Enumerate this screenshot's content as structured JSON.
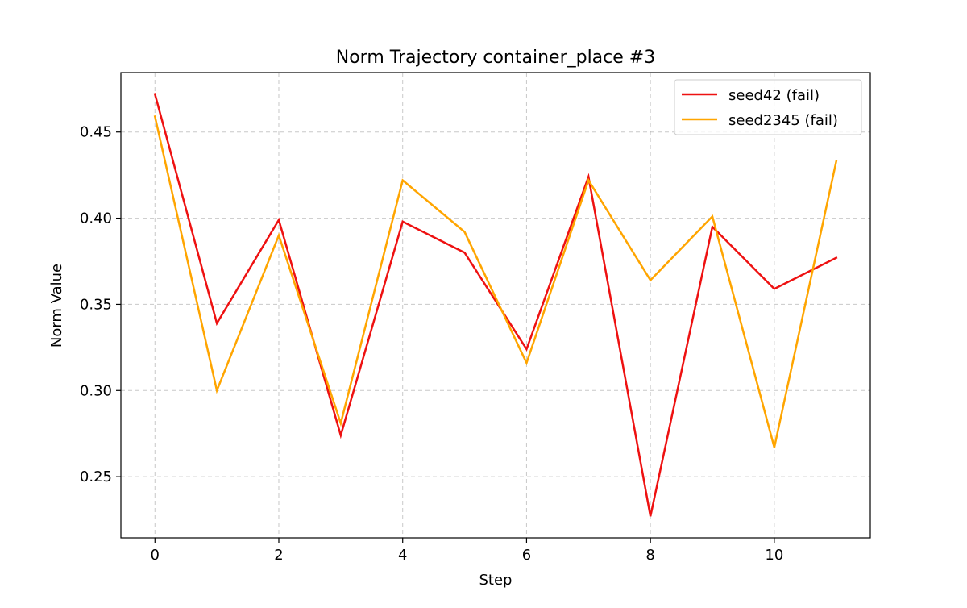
{
  "chart_data": {
    "type": "line",
    "title": "Norm Trajectory container_place #3",
    "xlabel": "Step",
    "ylabel": "Norm Value",
    "xlim": [
      -0.55,
      11.55
    ],
    "ylim": [
      0.2145,
      0.4845
    ],
    "xticks": [
      0,
      2,
      4,
      6,
      8,
      10
    ],
    "xtick_labels": [
      "0",
      "2",
      "4",
      "6",
      "8",
      "10"
    ],
    "yticks": [
      0.25,
      0.3,
      0.35,
      0.4,
      0.45
    ],
    "ytick_labels": [
      "0.25",
      "0.30",
      "0.35",
      "0.40",
      "0.45"
    ],
    "grid": true,
    "legend_position": "top-right",
    "x": [
      0,
      1,
      2,
      3,
      4,
      5,
      6,
      7,
      8,
      9,
      10,
      11
    ],
    "series": [
      {
        "name": "seed42 (fail)",
        "color": "#ee1111",
        "values": [
          0.472,
          0.339,
          0.399,
          0.274,
          0.398,
          0.38,
          0.324,
          0.424,
          0.227,
          0.395,
          0.359,
          0.377
        ]
      },
      {
        "name": "seed2345 (fail)",
        "color": "#ffa500",
        "values": [
          0.459,
          0.3,
          0.39,
          0.281,
          0.422,
          0.392,
          0.316,
          0.422,
          0.364,
          0.401,
          0.267,
          0.433
        ]
      }
    ]
  }
}
